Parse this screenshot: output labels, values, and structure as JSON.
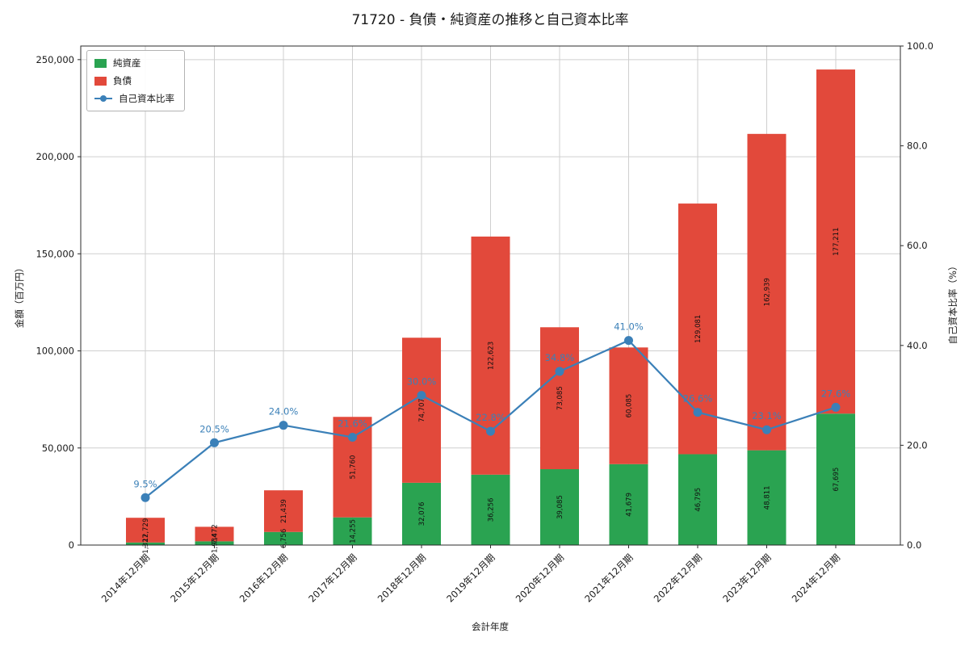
{
  "title": "71720 - 負債・純資産の推移と自己資本比率",
  "chart_data": {
    "type": "bar",
    "stacked": true,
    "title": "71720 - 負債・純資産の推移と自己資本比率",
    "categories": [
      "2014年12月期",
      "2015年12月期",
      "2016年12月期",
      "2017年12月期",
      "2018年12月期",
      "2019年12月期",
      "2020年12月期",
      "2021年12月期",
      "2022年12月期",
      "2023年12月期",
      "2024年12月期"
    ],
    "series": [
      {
        "name": "純資産",
        "color": "#2aa351",
        "values": [
          1327,
          1934,
          6756,
          14255,
          32076,
          36256,
          39085,
          41679,
          46795,
          48811,
          67695
        ]
      },
      {
        "name": "負債",
        "color": "#e2493b",
        "values": [
          12729,
          7472,
          21439,
          51760,
          74707,
          122623,
          73085,
          60085,
          129081,
          162939,
          177211
        ]
      }
    ],
    "line_series": {
      "name": "自己資本比率",
      "color": "#3b80b8",
      "unit": "%",
      "values": [
        9.5,
        20.5,
        24.0,
        21.6,
        30.0,
        22.8,
        34.8,
        41.0,
        26.6,
        23.1,
        27.6
      ]
    },
    "xlabel": "会計年度",
    "ylabel_left": "金額（百万円）",
    "ylabel_right": "自己資本比率（%）",
    "ylim_left": [
      0,
      257000
    ],
    "ylim_right": [
      0,
      100
    ],
    "yticks_left": [
      0,
      50000,
      100000,
      150000,
      200000,
      250000
    ],
    "yticks_right": [
      0,
      20,
      40,
      60,
      80,
      100
    ],
    "grid": true,
    "legend_position": "upper-left",
    "colors": {
      "grid": "#cfcfcf",
      "spine": "#2b2b2b",
      "tick_text": "#1a1a1a",
      "bar_label": "#111111"
    }
  }
}
